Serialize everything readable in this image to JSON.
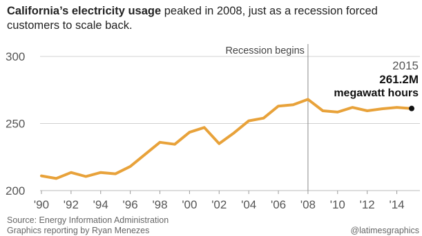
{
  "header": {
    "title_bold": "California’s electricity usage",
    "title_rest": " peaked in 2008, just as a recession forced customers to scale back."
  },
  "chart_data": {
    "type": "line",
    "title": "California’s electricity usage peaked in 2008, just as a recession forced customers to scale back.",
    "x": [
      1990,
      1991,
      1992,
      1993,
      1994,
      1995,
      1996,
      1997,
      1998,
      1999,
      2000,
      2001,
      2002,
      2003,
      2004,
      2005,
      2006,
      2007,
      2008,
      2009,
      2010,
      2011,
      2012,
      2013,
      2014,
      2015
    ],
    "series": [
      {
        "values": [
          211,
          209,
          213.5,
          210.5,
          213.5,
          212.5,
          218,
          227,
          236,
          234.5,
          243.5,
          247,
          235,
          243,
          252,
          254,
          263,
          264,
          268,
          259.5,
          258.5,
          262,
          259.5,
          261,
          262,
          261.2
        ]
      }
    ],
    "ylim": [
      200,
      300
    ],
    "yticks": [
      200,
      250,
      300
    ],
    "xticks": [
      1990,
      1992,
      1994,
      1996,
      1998,
      2000,
      2002,
      2004,
      2006,
      2008,
      2010,
      2012,
      2014
    ],
    "xtick_labels": [
      "'90",
      "'92",
      "'94",
      "'96",
      "'98",
      "'00",
      "'02",
      "'04",
      "'06",
      "'08",
      "'10",
      "'12",
      "'14"
    ],
    "grid": true,
    "line_color": "#e8a23a",
    "annotations": {
      "recession_x": 2008,
      "recession_label": "Recession begins",
      "end_year": "2015",
      "end_value": "261.2M",
      "end_unit": "megawatt hours"
    }
  },
  "footer": {
    "source": "Source: Energy Information Administration",
    "credit": "Graphics reporting by Ryan Menezes",
    "brand": "@latimesgraphics"
  }
}
